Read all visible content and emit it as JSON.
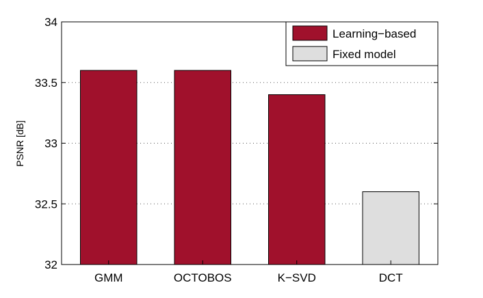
{
  "chart_data": {
    "type": "bar",
    "categories": [
      "GMM",
      "OCTOBOS",
      "K−SVD",
      "DCT"
    ],
    "values": [
      33.6,
      33.6,
      33.4,
      32.6
    ],
    "bar_groups": [
      "Learning−based",
      "Learning−based",
      "Learning−based",
      "Fixed model"
    ],
    "title": "",
    "xlabel": "",
    "ylabel": "PSNR [dB]",
    "ylim": [
      32,
      34
    ],
    "yticks": [
      32,
      32.5,
      33,
      33.5,
      34
    ],
    "ytick_labels": [
      "32",
      "32.5",
      "33",
      "33.5",
      "34"
    ],
    "grid": "horizontal dotted",
    "legend_position": "top-right",
    "legend": [
      {
        "label": "Learning−based",
        "color": "#a0112c"
      },
      {
        "label": "Fixed model",
        "color": "#dedede"
      }
    ]
  }
}
